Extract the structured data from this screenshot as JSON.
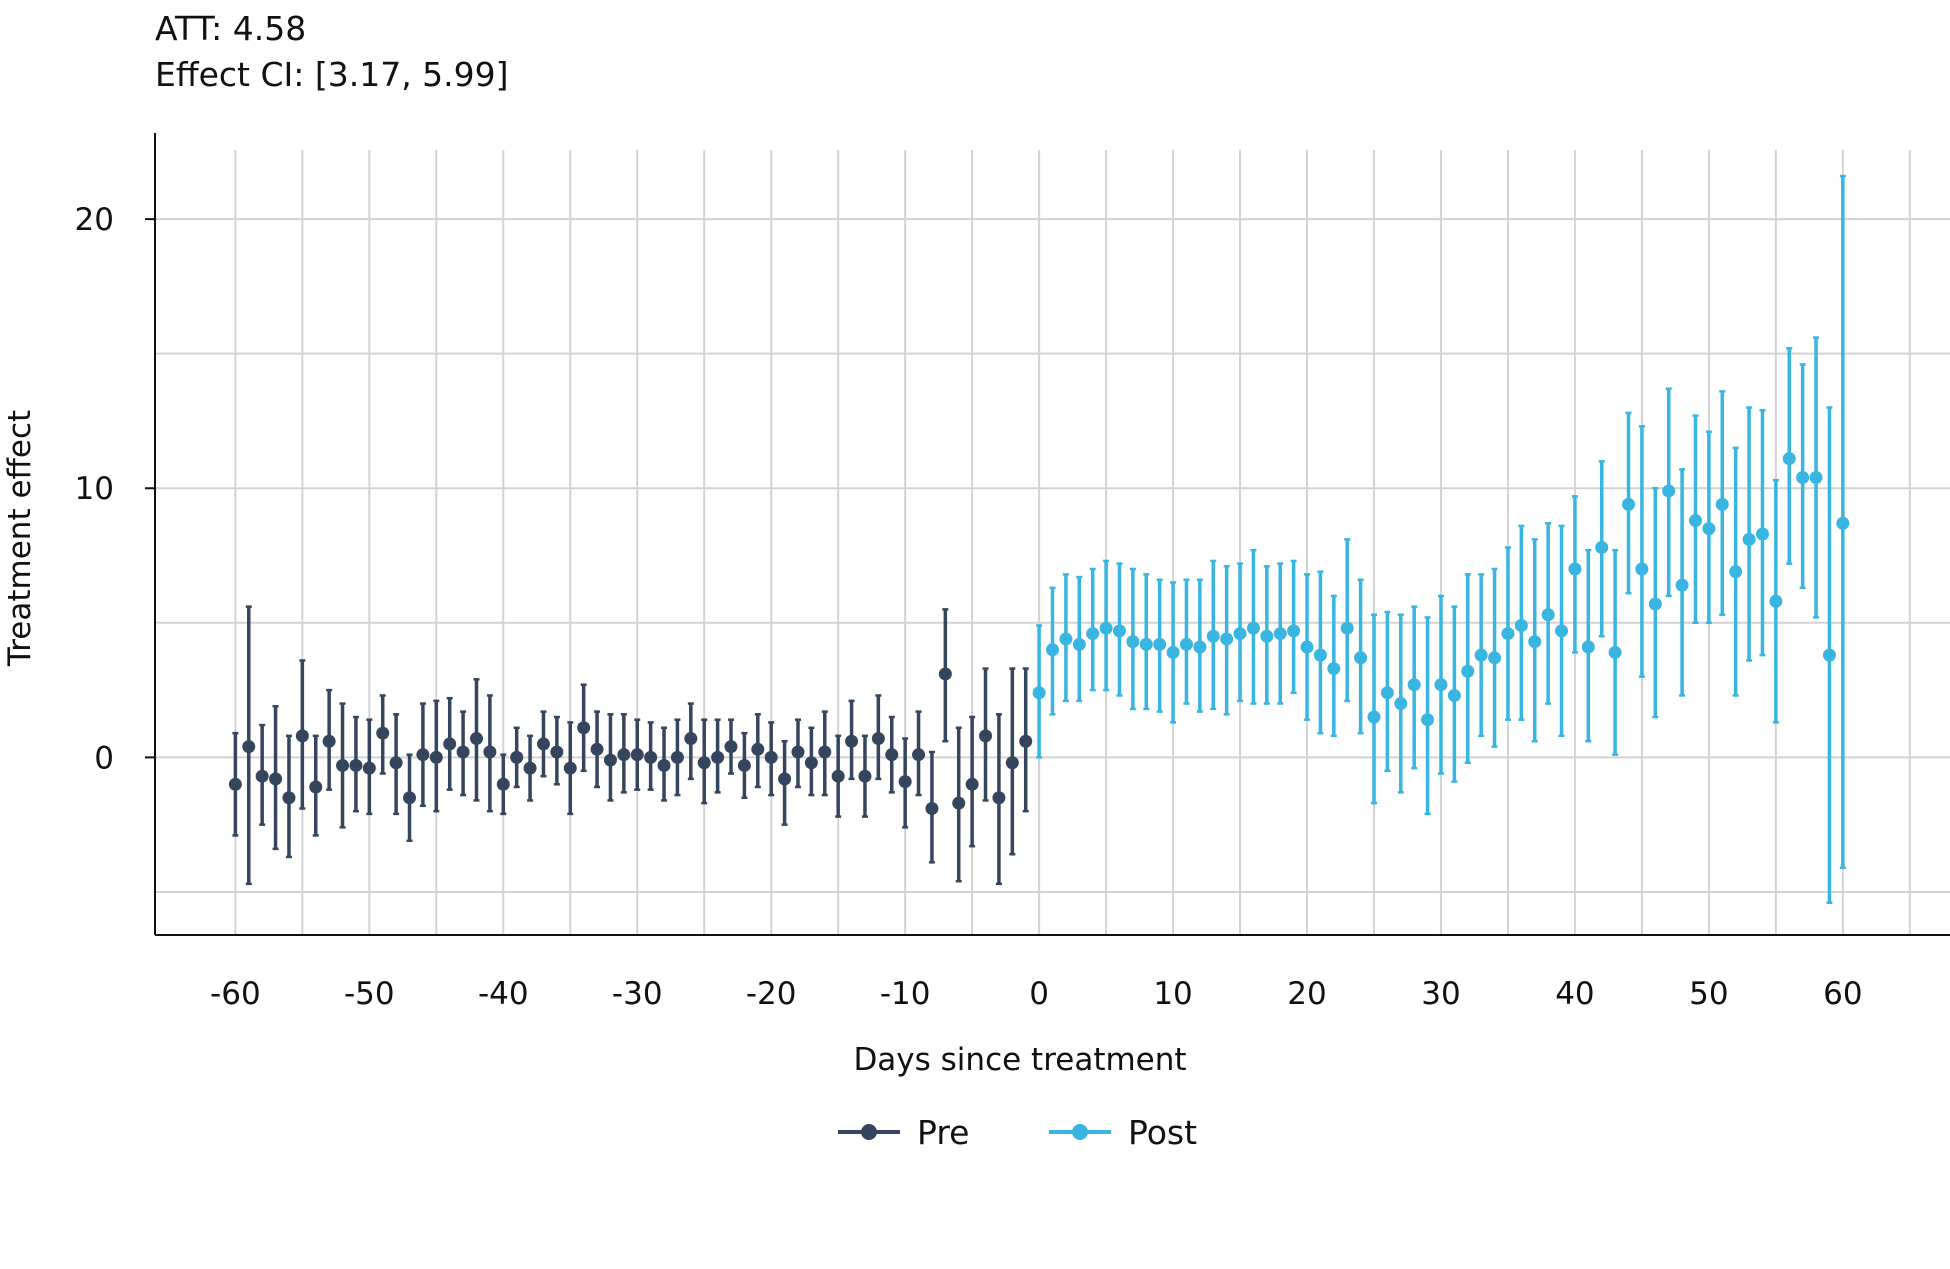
{
  "annotations": {
    "att": "ATT: 4.58",
    "effect_ci": "Effect CI: [3.17, 5.99]"
  },
  "chart_data": {
    "type": "scatter",
    "subtype": "event-study point estimates with confidence interval error bars",
    "xlabel": "Days since treatment",
    "ylabel": "Treatment effect",
    "xlim": [
      -66,
      68
    ],
    "ylim": [
      -6.6,
      23.2
    ],
    "xticks": [
      -60,
      -50,
      -40,
      -30,
      -20,
      -10,
      0,
      10,
      20,
      30,
      40,
      50,
      60
    ],
    "yticks": [
      0,
      10,
      20
    ],
    "x_tick_labels": [
      "-60",
      "-50",
      "-40",
      "-30",
      "-20",
      "-10",
      "0",
      "10",
      "20",
      "30",
      "40",
      "50",
      "60"
    ],
    "y_tick_labels": [
      "0",
      "10",
      "20"
    ],
    "grid": true,
    "legend_position": "bottom",
    "series": [
      {
        "name": "Pre",
        "color": "#36455e",
        "x": [
          -60,
          -59,
          -58,
          -57,
          -56,
          -55,
          -54,
          -53,
          -52,
          -51,
          -50,
          -49,
          -48,
          -47,
          -46,
          -45,
          -44,
          -43,
          -42,
          -41,
          -40,
          -39,
          -38,
          -37,
          -36,
          -35,
          -34,
          -33,
          -32,
          -31,
          -30,
          -29,
          -28,
          -27,
          -26,
          -25,
          -24,
          -23,
          -22,
          -21,
          -20,
          -19,
          -18,
          -17,
          -16,
          -15,
          -14,
          -13,
          -12,
          -11,
          -10,
          -9,
          -8,
          -7,
          -6,
          -5,
          -4,
          -3,
          -2,
          -1
        ],
        "y": [
          -1.0,
          0.4,
          -0.7,
          -0.8,
          -1.5,
          0.8,
          -1.1,
          0.6,
          -0.3,
          -0.3,
          -0.4,
          0.9,
          -0.2,
          -1.5,
          0.1,
          0.0,
          0.5,
          0.2,
          0.7,
          0.2,
          -1.0,
          0.0,
          -0.4,
          0.5,
          0.2,
          -0.4,
          1.1,
          0.3,
          -0.1,
          0.1,
          0.1,
          0.0,
          -0.3,
          0.0,
          0.7,
          -0.2,
          0.0,
          0.4,
          -0.3,
          0.3,
          0.0,
          -0.8,
          0.2,
          -0.2,
          0.2,
          -0.7,
          0.6,
          -0.7,
          0.7,
          0.1,
          -0.9,
          0.1,
          -1.9,
          3.1,
          -1.7,
          -1.0,
          0.8,
          -1.5,
          -0.2,
          0.6
        ],
        "ci_low": [
          -2.9,
          -4.7,
          -2.5,
          -3.4,
          -3.7,
          -1.9,
          -2.9,
          -1.2,
          -2.6,
          -2.0,
          -2.1,
          -0.6,
          -2.1,
          -3.1,
          -1.8,
          -2.0,
          -1.2,
          -1.4,
          -1.6,
          -2.0,
          -2.1,
          -1.1,
          -1.6,
          -0.7,
          -1.0,
          -2.1,
          -0.5,
          -1.1,
          -1.6,
          -1.3,
          -1.2,
          -1.2,
          -1.6,
          -1.4,
          -0.8,
          -1.7,
          -1.3,
          -0.6,
          -1.5,
          -1.1,
          -1.4,
          -2.5,
          -1.1,
          -1.4,
          -1.4,
          -2.2,
          -0.8,
          -2.2,
          -0.8,
          -1.3,
          -2.6,
          -1.4,
          -3.9,
          0.6,
          -4.6,
          -3.3,
          -1.6,
          -4.7,
          -3.6,
          -2.0
        ],
        "ci_high": [
          0.9,
          5.6,
          1.2,
          1.9,
          0.8,
          3.6,
          0.8,
          2.5,
          2.0,
          1.5,
          1.4,
          2.3,
          1.6,
          0.1,
          2.0,
          2.1,
          2.2,
          1.7,
          2.9,
          2.3,
          0.1,
          1.1,
          0.8,
          1.7,
          1.5,
          1.3,
          2.7,
          1.7,
          1.6,
          1.6,
          1.4,
          1.3,
          1.1,
          1.4,
          2.0,
          1.4,
          1.4,
          1.4,
          0.9,
          1.6,
          1.3,
          0.6,
          1.4,
          1.1,
          1.7,
          0.8,
          2.1,
          0.8,
          2.3,
          1.5,
          0.7,
          1.7,
          0.2,
          5.5,
          1.1,
          1.5,
          3.3,
          1.6,
          3.3,
          3.3
        ]
      },
      {
        "name": "Post",
        "color": "#39b5e2",
        "x": [
          0,
          1,
          2,
          3,
          4,
          5,
          6,
          7,
          8,
          9,
          10,
          11,
          12,
          13,
          14,
          15,
          16,
          17,
          18,
          19,
          20,
          21,
          22,
          23,
          24,
          25,
          26,
          27,
          28,
          29,
          30,
          31,
          32,
          33,
          34,
          35,
          36,
          37,
          38,
          39,
          40,
          41,
          42,
          43,
          44,
          45,
          46,
          47,
          48,
          49,
          50,
          51,
          52,
          53,
          54,
          55,
          56,
          57,
          58,
          59,
          60
        ],
        "y": [
          2.4,
          4.0,
          4.4,
          4.2,
          4.6,
          4.8,
          4.7,
          4.3,
          4.2,
          4.2,
          3.9,
          4.2,
          4.1,
          4.5,
          4.4,
          4.6,
          4.8,
          4.5,
          4.6,
          4.7,
          4.1,
          3.8,
          3.3,
          4.8,
          3.7,
          1.5,
          2.4,
          2.0,
          2.7,
          1.4,
          2.7,
          2.3,
          3.2,
          3.8,
          3.7,
          4.6,
          4.9,
          4.3,
          5.3,
          4.7,
          7.0,
          4.1,
          7.8,
          3.9,
          9.4,
          7.0,
          5.7,
          9.9,
          6.4,
          8.8,
          8.5,
          9.4,
          6.9,
          8.1,
          8.3,
          5.8,
          11.1,
          10.4,
          10.4,
          3.8,
          8.7
        ],
        "ci_low": [
          0.0,
          1.6,
          2.1,
          2.1,
          2.5,
          2.5,
          2.3,
          1.8,
          1.8,
          1.7,
          1.3,
          2.0,
          1.7,
          1.8,
          1.6,
          2.1,
          2.0,
          2.0,
          2.0,
          2.4,
          1.4,
          0.9,
          0.8,
          2.1,
          0.9,
          -1.7,
          -0.5,
          -1.3,
          -0.4,
          -2.1,
          -0.6,
          -0.9,
          -0.2,
          0.8,
          0.4,
          1.4,
          1.4,
          0.6,
          2.0,
          0.8,
          3.9,
          0.6,
          4.5,
          0.1,
          6.1,
          3.0,
          1.5,
          6.0,
          2.3,
          5.0,
          5.0,
          5.3,
          2.3,
          3.6,
          3.8,
          1.3,
          7.2,
          6.3,
          5.2,
          -5.4,
          -4.1
        ],
        "ci_high": [
          4.9,
          6.3,
          6.8,
          6.7,
          7.0,
          7.3,
          7.2,
          7.0,
          6.8,
          6.6,
          6.5,
          6.6,
          6.6,
          7.3,
          7.1,
          7.2,
          7.7,
          7.1,
          7.2,
          7.3,
          6.8,
          6.9,
          6.0,
          8.1,
          6.6,
          5.3,
          5.4,
          5.3,
          5.6,
          5.2,
          6.0,
          5.6,
          6.8,
          6.8,
          7.0,
          7.8,
          8.6,
          8.1,
          8.7,
          8.6,
          9.7,
          7.7,
          11.0,
          7.7,
          12.8,
          12.3,
          10.0,
          13.7,
          10.7,
          12.7,
          12.1,
          13.6,
          11.5,
          13.0,
          12.9,
          10.3,
          15.2,
          14.6,
          15.6,
          13.0,
          21.6
        ]
      }
    ]
  }
}
